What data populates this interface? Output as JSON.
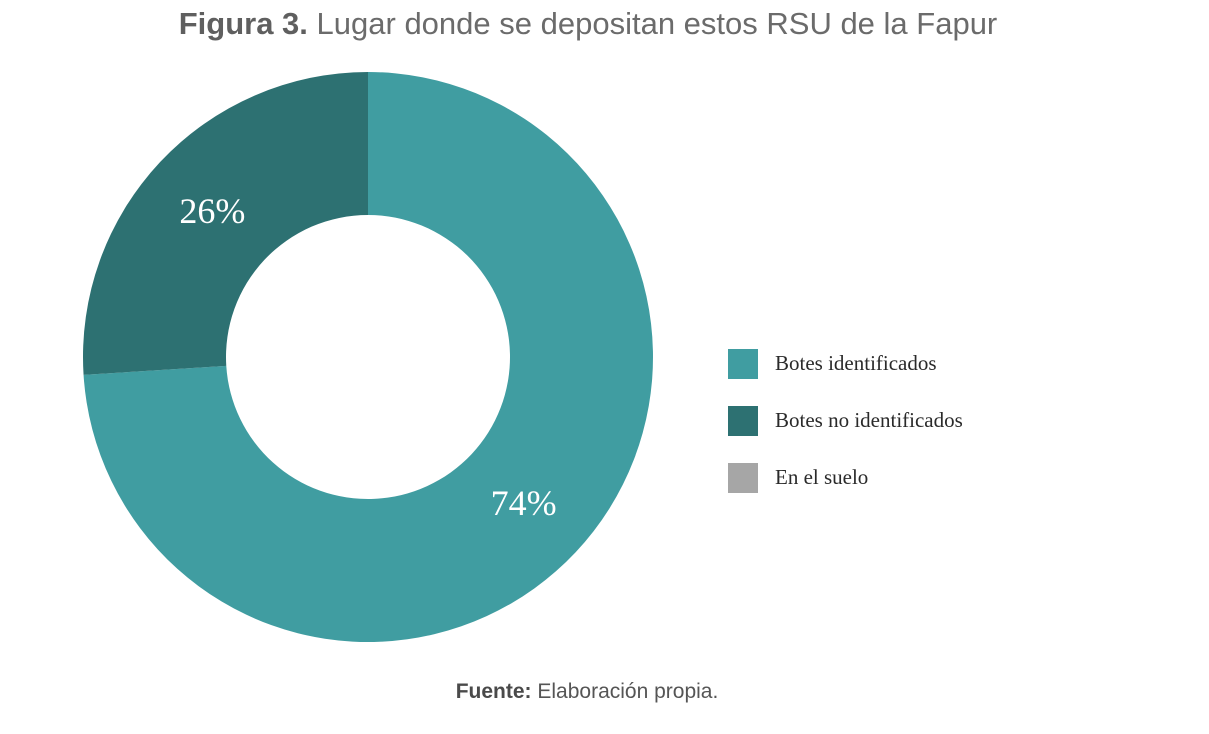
{
  "title": {
    "lead": "Figura 3.",
    "text": "Lugar donde se depositan estos RSU de la Fapur"
  },
  "source": {
    "lead": "Fuente:",
    "text": "Elaboración propia."
  },
  "chart_data": {
    "type": "pie",
    "variant": "donut",
    "start": "top, clockwise",
    "legend_position": "right",
    "slices": [
      {
        "name": "Botes identificados",
        "value": 74,
        "label": "74%",
        "color": "#409da1"
      },
      {
        "name": "Botes no identificados",
        "value": 26,
        "label": "26%",
        "color": "#2d7172"
      },
      {
        "name": "En el suelo",
        "value": 0,
        "label": "",
        "color": "#a6a6a6"
      }
    ]
  }
}
